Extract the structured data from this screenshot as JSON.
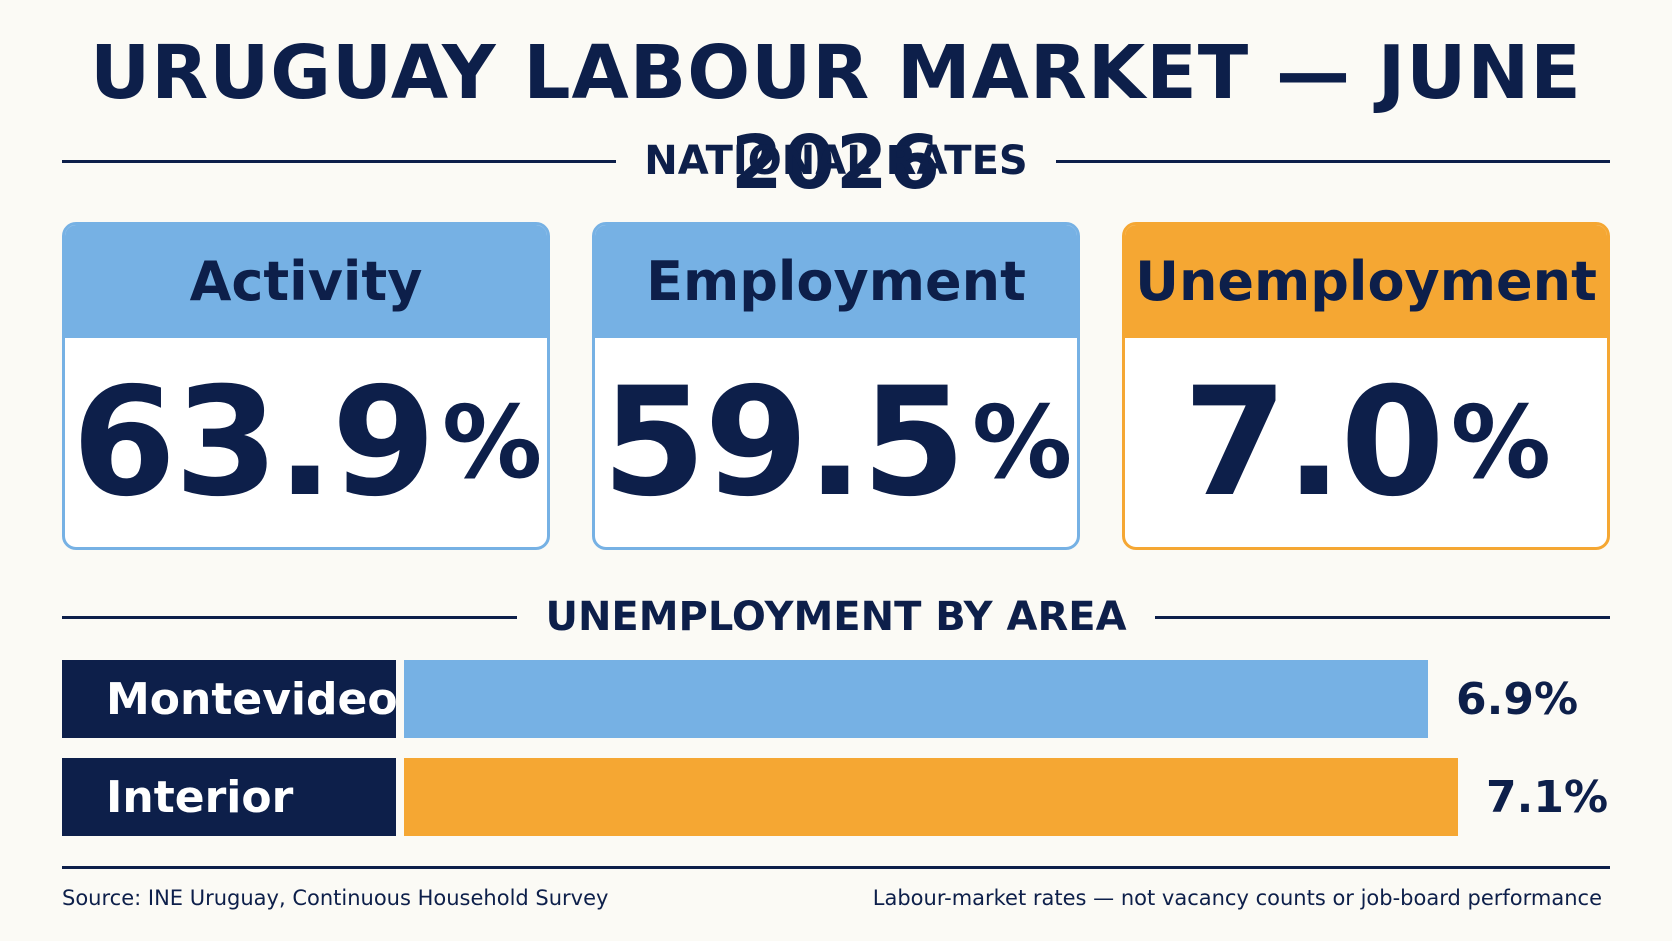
{
  "title": "URUGUAY LABOUR MARKET — JUNE 2026",
  "sections": {
    "national": "NATIONAL RATES",
    "area": "UNEMPLOYMENT BY AREA"
  },
  "colors": {
    "navy": "#0d1f4a",
    "blue": "#76b1e4",
    "orange": "#f5a733"
  },
  "chart_data": [
    {
      "type": "table",
      "categories": [
        "Activity",
        "Employment",
        "Unemployment"
      ],
      "values": [
        63.9,
        59.5,
        7.0
      ],
      "display": [
        "63.9",
        "59.5",
        "7.0"
      ],
      "unit": "%",
      "highlight": "Unemployment"
    },
    {
      "type": "bar",
      "orientation": "horizontal",
      "categories": [
        "Montevideo",
        "Interior"
      ],
      "values": [
        6.9,
        7.1
      ],
      "labels": [
        "6.9%",
        "7.1%"
      ],
      "unit": "%"
    }
  ],
  "footer": {
    "source": "Source: INE Uruguay, Continuous Household Survey",
    "note": "Labour-market rates — not vacancy counts or job-board performance"
  }
}
